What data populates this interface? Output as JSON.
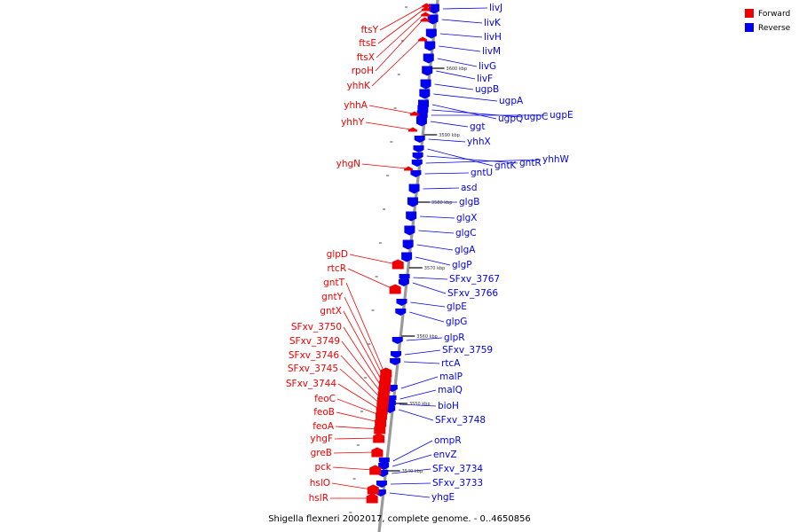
{
  "caption": "Shigella flexneri 2002017, complete genome. - 0..4650856",
  "legend": [
    {
      "label": "Forward",
      "color": "#ee0000"
    },
    {
      "label": "Reverse",
      "color": "#0000ee"
    }
  ],
  "colors": {
    "forward": "#ee0000",
    "reverse": "#0000ee",
    "backbone": "#999999"
  },
  "ticks": [
    "3600 kbp",
    "3590 kbp",
    "3580 kbp",
    "3570 kbp",
    "3560 kbp",
    "3550 kbp",
    "3540 kbp"
  ],
  "forward_genes": [
    "ftsY",
    "ftsE",
    "ftsX",
    "rpoH",
    "yhhK",
    "yhhA",
    "yhhY",
    "yhgN",
    "glpD",
    "rtcR",
    "gntT",
    "gntY",
    "gntX",
    "SFxv_3750",
    "SFxv_3749",
    "SFxv_3746",
    "SFxv_3745",
    "SFxv_3744",
    "feoC",
    "feoB",
    "feoA",
    "yhgF",
    "greB",
    "pck",
    "hslO",
    "hslR"
  ],
  "reverse_genes": [
    "livJ",
    "livK",
    "livH",
    "livM",
    "livG",
    "livF",
    "ugpB",
    "ugpA",
    "ugpQ",
    "ugpC",
    "ugpE",
    "ggt",
    "yhhX",
    "gntK",
    "gntR",
    "yhhW",
    "gntU",
    "asd",
    "glgB",
    "glgX",
    "glgC",
    "glgA",
    "glgP",
    "SFxv_3767",
    "SFxv_3766",
    "glpE",
    "glpG",
    "glpR",
    "SFxv_3759",
    "rtcA",
    "malP",
    "malQ",
    "bioH",
    "SFxv_3748",
    "ompR",
    "envZ",
    "SFxv_3734",
    "SFxv_3733",
    "yhgE"
  ]
}
